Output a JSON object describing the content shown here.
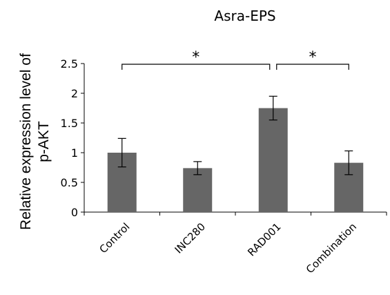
{
  "chart_data": {
    "type": "bar",
    "title": "Asra-EPS",
    "ylabel_lines": [
      "Relative expression level of",
      "p-AKT"
    ],
    "xlabel": "",
    "categories": [
      "Control",
      "INC280",
      "RAD001",
      "Combination"
    ],
    "values": [
      1.0,
      0.74,
      1.75,
      0.83
    ],
    "errors": [
      0.24,
      0.11,
      0.2,
      0.2
    ],
    "ylim": [
      0,
      2.5
    ],
    "yticks": [
      "0",
      "0.5",
      "1",
      "1.5",
      "2",
      "2.5"
    ],
    "bar_color": "#666666",
    "grid": false,
    "significance": [
      {
        "from": 0,
        "to": 2,
        "label": "*"
      },
      {
        "from": 2,
        "to": 3,
        "label": "*"
      }
    ]
  }
}
